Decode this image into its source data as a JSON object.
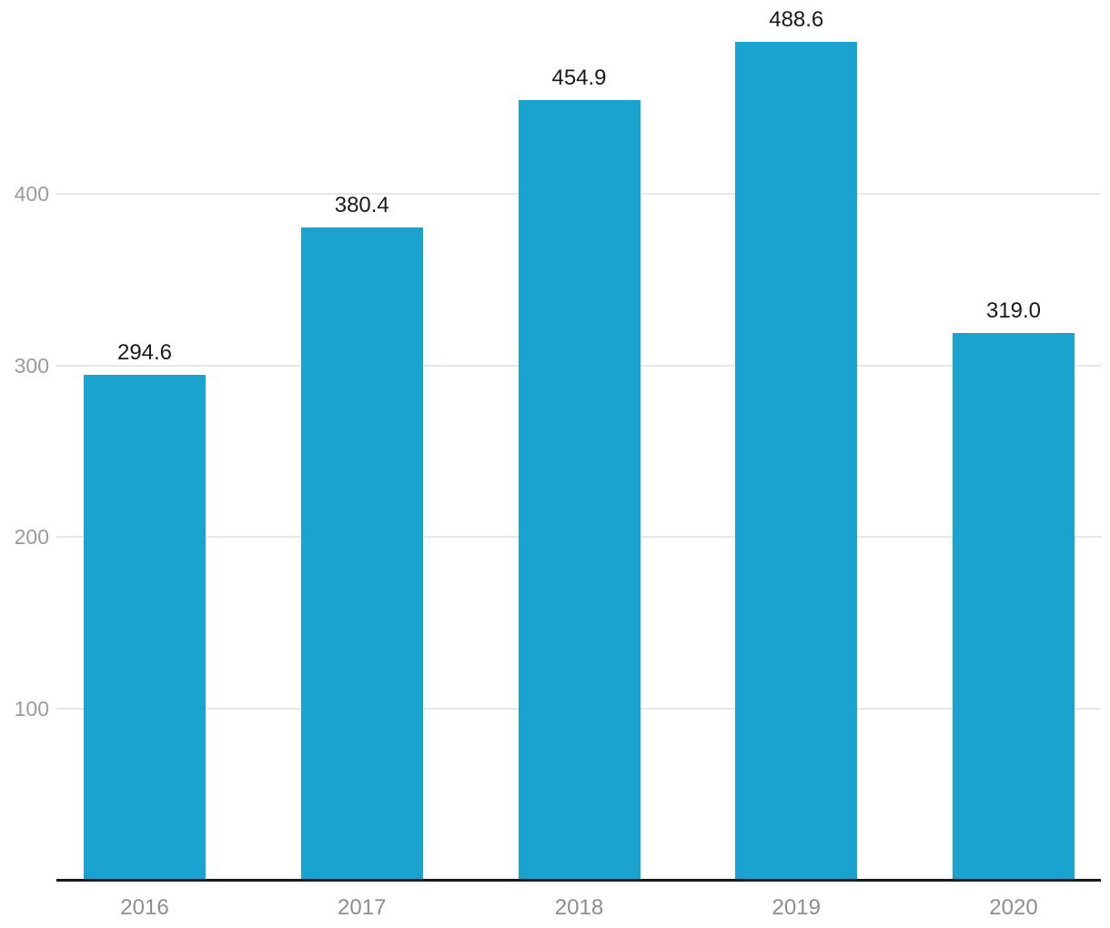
{
  "chart_data": {
    "type": "bar",
    "title": "",
    "xlabel": "",
    "ylabel": "",
    "categories": [
      "2016",
      "2017",
      "2018",
      "2019",
      "2020"
    ],
    "values": [
      294.6,
      380.4,
      454.9,
      488.6,
      319.0
    ],
    "value_labels": [
      "294.6",
      "380.4",
      "454.9",
      "488.6",
      "319.0"
    ],
    "yticks": [
      100,
      200,
      300,
      400
    ],
    "ytick_labels": [
      "100",
      "200",
      "300",
      "400"
    ],
    "ylim": [
      0,
      513
    ],
    "grid": "horizontal",
    "legend": "none",
    "colors": {
      "bar": "#1aa3ce",
      "gridline": "#e7e7e7",
      "axis_line": "#1a1a1a",
      "ytick_text": "#9b9b9b",
      "xtick_text": "#8e8e8e",
      "value_text": "#1a1a1a",
      "background": "#ffffff"
    }
  }
}
